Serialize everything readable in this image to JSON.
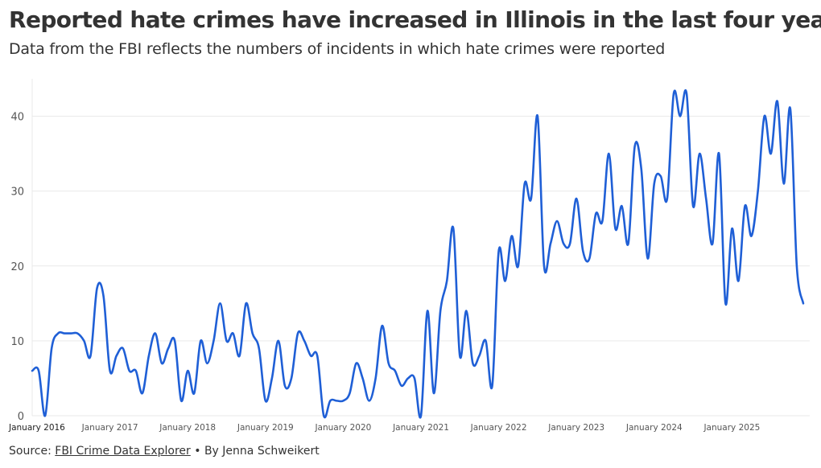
{
  "header": {
    "title": "Reported hate crimes have increased in Illinois in the last four years",
    "subtitle": "Data from the FBI reflects the numbers of incidents in which hate crimes were reported"
  },
  "footer": {
    "source_prefix": "Source: ",
    "source_link_label": "FBI Crime Data Explorer",
    "byline": " • By Jenna Schweikert"
  },
  "colors": {
    "line": "#1f5fd6",
    "grid": "#e9e9e9",
    "axis_text": "#555555",
    "text": "#333333"
  },
  "chart_data": {
    "type": "line",
    "title": "Reported hate crimes have increased in Illinois in the last four years",
    "subtitle": "Data from the FBI reflects the numbers of incidents in which hate crimes were reported",
    "xlabel": "",
    "ylabel": "",
    "x_start": "2016-01",
    "x_end": "2025-12",
    "xlim": [
      "2016-01",
      "2026-01"
    ],
    "ylim": [
      0,
      45
    ],
    "y_ticks": [
      0,
      10,
      20,
      30,
      40
    ],
    "x_ticks": [
      {
        "date": "2016-01",
        "label": "January 2016"
      },
      {
        "date": "2017-01",
        "label": "January 2017"
      },
      {
        "date": "2018-01",
        "label": "January 2018"
      },
      {
        "date": "2019-01",
        "label": "January 2019"
      },
      {
        "date": "2020-01",
        "label": "January 2020"
      },
      {
        "date": "2021-01",
        "label": "January 2021"
      },
      {
        "date": "2022-01",
        "label": "January 2022"
      },
      {
        "date": "2023-01",
        "label": "January 2023"
      },
      {
        "date": "2024-01",
        "label": "January 2024"
      },
      {
        "date": "2025-01",
        "label": "January 2025"
      }
    ],
    "grid": true,
    "legend": "none",
    "series": [
      {
        "color": "#1f5fd6",
        "values": [
          6,
          6,
          0,
          9,
          11,
          11,
          11,
          11,
          10,
          8,
          17,
          16,
          6,
          8,
          9,
          6,
          6,
          3,
          8,
          11,
          7,
          9,
          10,
          2,
          6,
          3,
          10,
          7,
          10,
          15,
          10,
          11,
          8,
          15,
          11,
          9,
          2,
          5,
          10,
          4,
          5,
          11,
          10,
          8,
          8,
          0,
          2,
          2,
          2,
          3,
          7,
          5,
          2,
          5,
          12,
          7,
          6,
          4,
          5,
          5,
          0,
          14,
          3,
          14,
          18,
          25,
          8,
          14,
          7,
          8,
          10,
          4,
          22,
          18,
          24,
          20,
          31,
          29,
          40,
          20,
          23,
          26,
          23,
          23,
          29,
          22,
          21,
          27,
          26,
          35,
          25,
          28,
          23,
          36,
          33,
          21,
          31,
          32,
          29,
          43,
          40,
          43,
          28,
          35,
          29,
          23,
          35,
          15,
          25,
          18,
          28,
          24,
          30,
          40,
          35,
          42,
          31,
          41,
          20,
          15
        ]
      }
    ]
  }
}
